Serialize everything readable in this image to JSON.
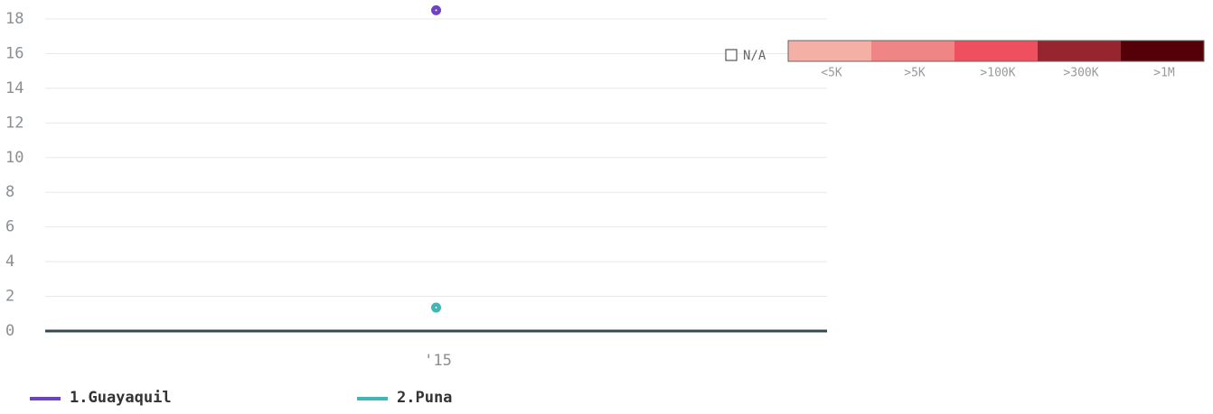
{
  "chart_data": {
    "type": "line",
    "categories": [
      "'15"
    ],
    "series": [
      {
        "name": "1.Guayaquil",
        "color": "#6f42c1",
        "values": [
          18.5
        ]
      },
      {
        "name": "2.Puna",
        "color": "#3fb8b5",
        "values": [
          1.35
        ]
      }
    ],
    "ylim": [
      0,
      18
    ],
    "yticks": [
      0,
      2,
      4,
      6,
      8,
      10,
      12,
      14,
      16,
      18
    ],
    "grid": true,
    "color_legend": {
      "na_label": "N/A",
      "bins": [
        {
          "label": "<5K",
          "color": "#f4b0a5"
        },
        {
          "label": ">5K",
          "color": "#ef8585"
        },
        {
          "label": ">100K",
          "color": "#ef5060"
        },
        {
          "label": ">300K",
          "color": "#962530"
        },
        {
          "label": ">1M",
          "color": "#550008"
        }
      ]
    }
  }
}
